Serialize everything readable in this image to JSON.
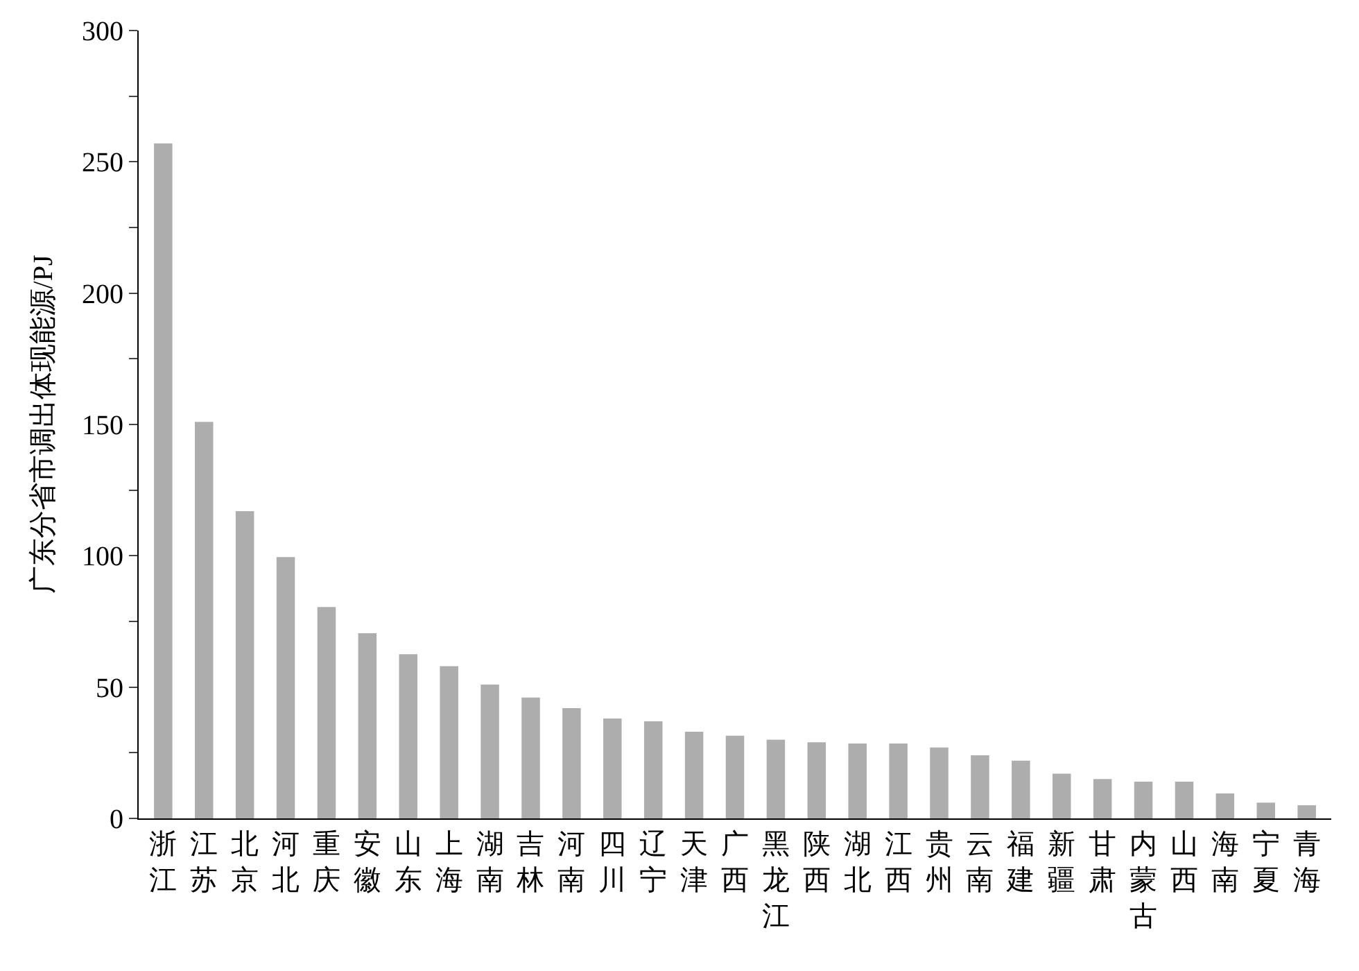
{
  "chart_data": {
    "type": "bar",
    "ylabel": "广东分省市调出体现能源/PJ",
    "categories": [
      "浙江",
      "江苏",
      "北京",
      "河北",
      "重庆",
      "安徽",
      "山东",
      "上海",
      "湖南",
      "吉林",
      "河南",
      "四川",
      "辽宁",
      "天津",
      "广西",
      "黑龙江",
      "陕西",
      "湖北",
      "江西",
      "贵州",
      "云南",
      "福建",
      "新疆",
      "甘肃",
      "内蒙古",
      "山西",
      "海南",
      "宁夏",
      "青海"
    ],
    "values": [
      257,
      151,
      117,
      99.5,
      80.5,
      70.5,
      62.5,
      58,
      51,
      46,
      42,
      38,
      37,
      33,
      31.5,
      30,
      29,
      28.5,
      28.5,
      27,
      24,
      22,
      17,
      15,
      14,
      14,
      9.5,
      6,
      5
    ],
    "color": "#adadad",
    "ylim": [
      0,
      300
    ],
    "yticks": [
      0,
      {
        "value": 25,
        "label": null
      },
      50,
      {
        "value": 75,
        "label": null
      },
      100,
      {
        "value": 125,
        "label": null
      },
      150,
      {
        "value": 175,
        "label": null
      },
      200,
      {
        "value": 225,
        "label": null
      },
      250,
      {
        "value": 275,
        "label": null
      },
      300
    ]
  }
}
